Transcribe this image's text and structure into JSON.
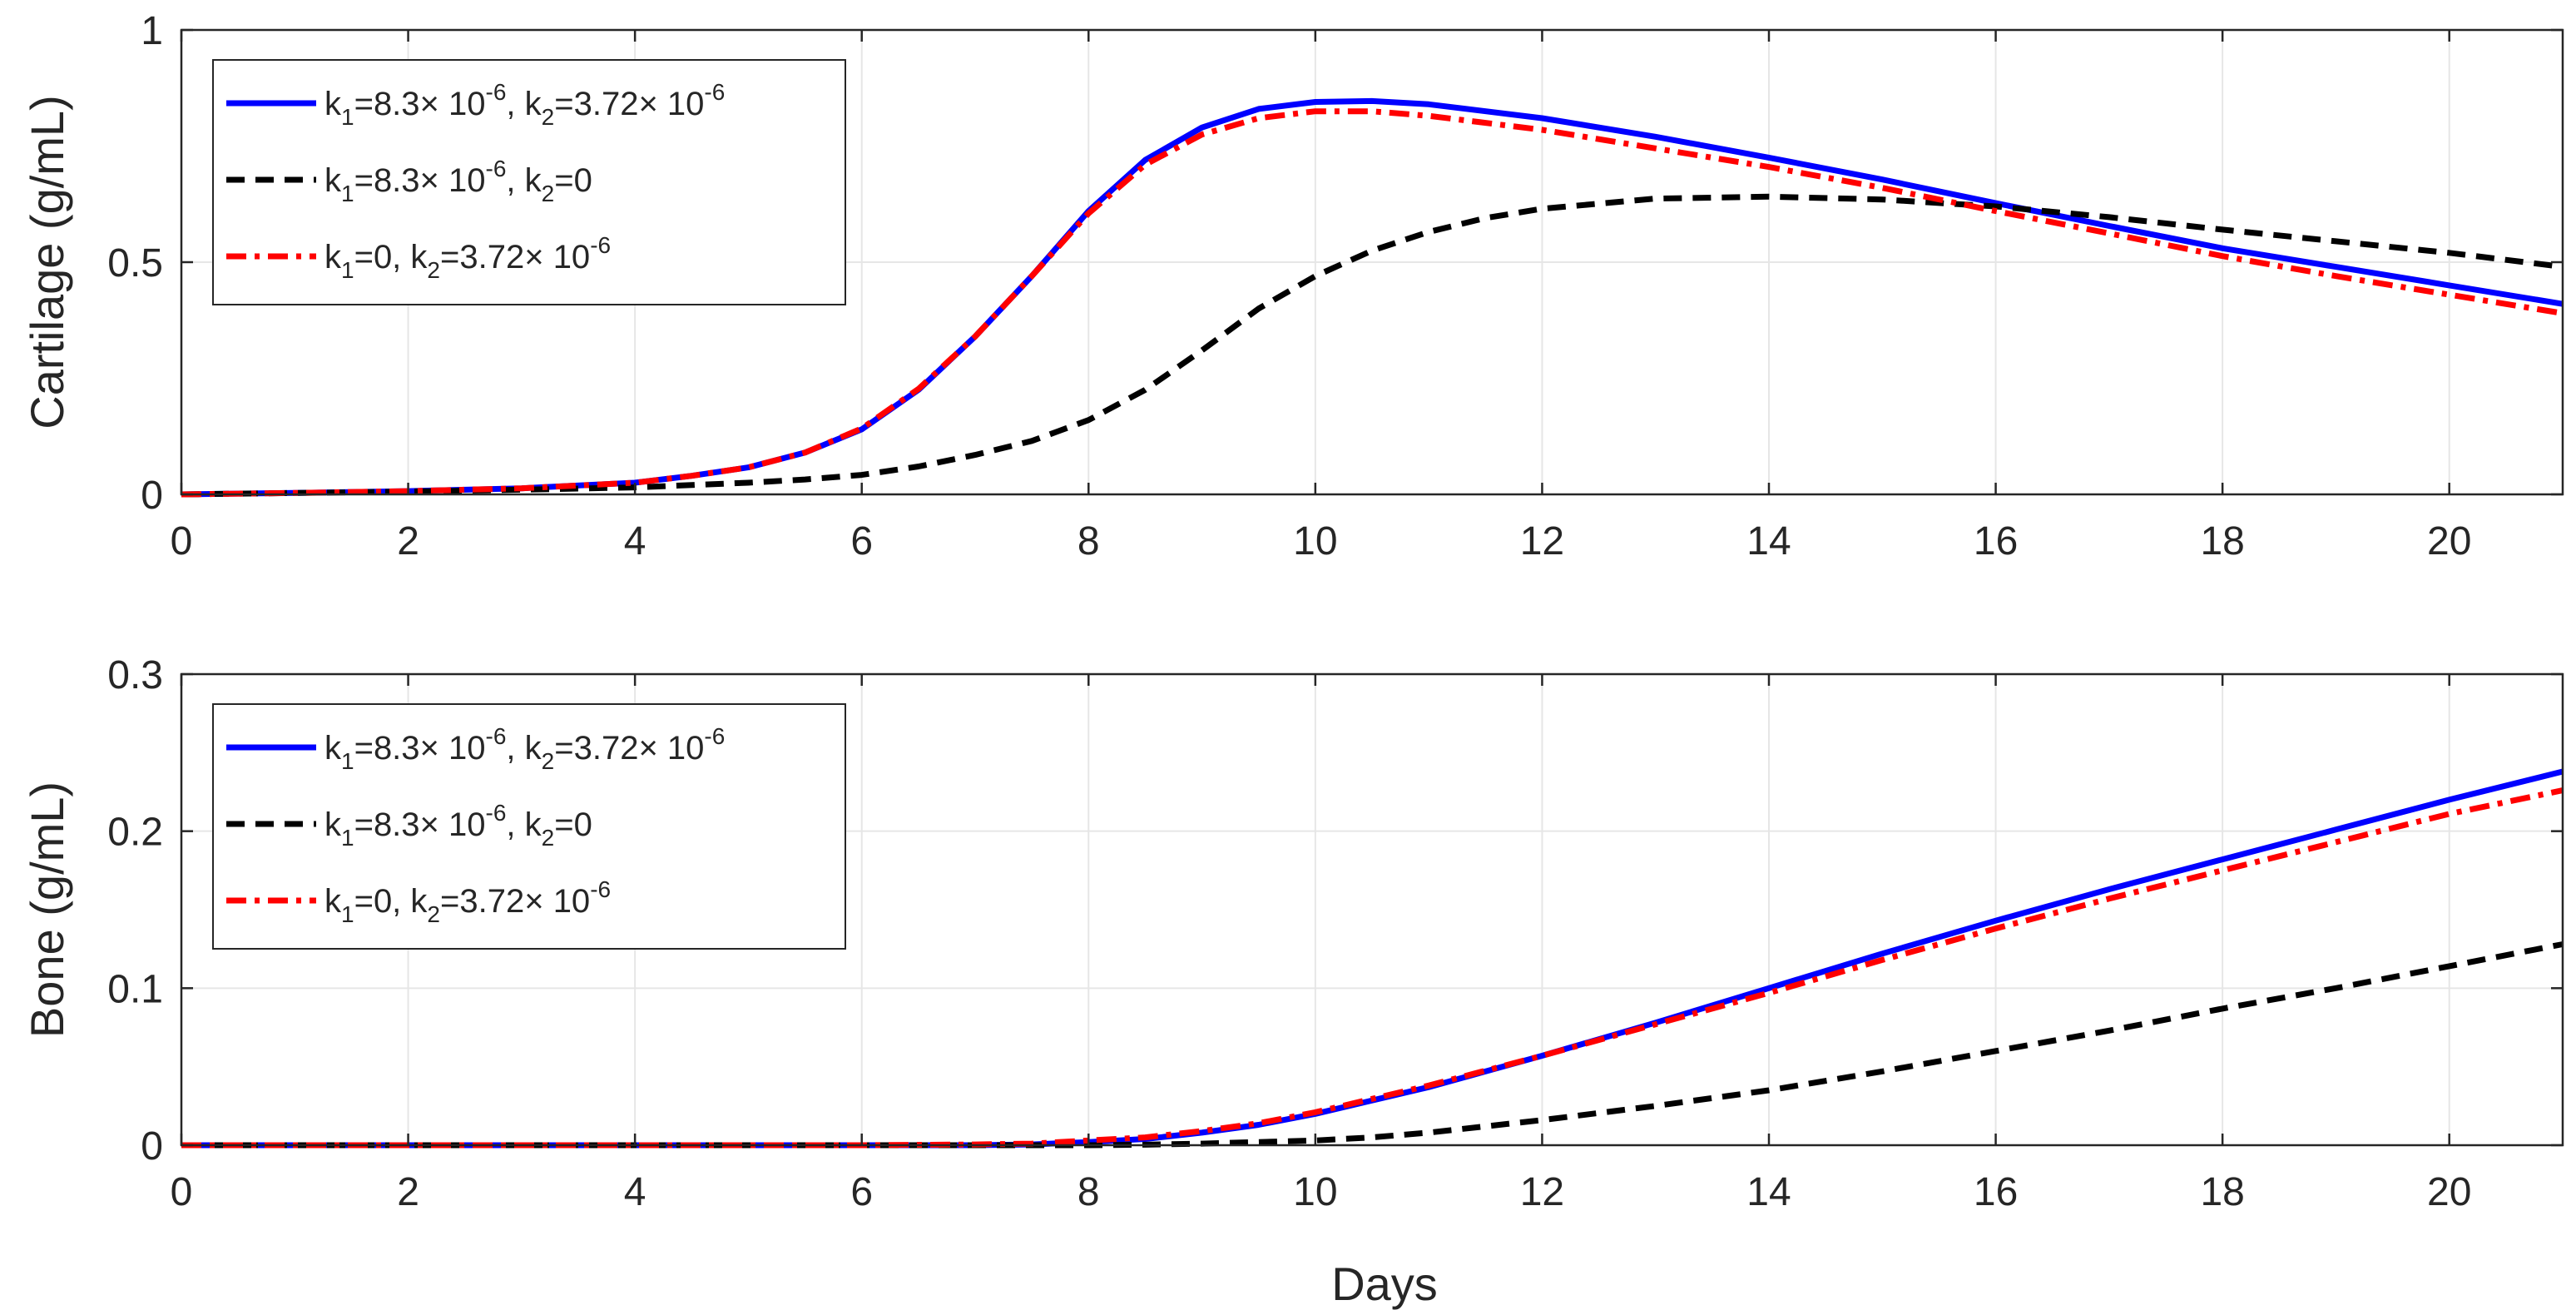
{
  "figure": {
    "xlabel": "Days",
    "legend_placement": "top-left"
  },
  "chart_data": [
    {
      "type": "line",
      "ylabel": "Cartilage (g/mL)",
      "xlim": [
        0,
        21
      ],
      "ylim": [
        0,
        1
      ],
      "x_ticks": [
        0,
        2,
        4,
        6,
        8,
        10,
        12,
        14,
        16,
        18,
        20
      ],
      "y_ticks": [
        0,
        0.5,
        1
      ],
      "y_tick_labels": [
        "0",
        "0.5",
        "1"
      ],
      "grid": true,
      "legend": "top-left",
      "series": [
        {
          "name": "k1=8.3× 10-6, k2=3.72× 10-6",
          "color": "#0000ff",
          "style": "solid",
          "x": [
            0,
            1,
            2,
            3,
            4,
            4.5,
            5,
            5.5,
            6,
            6.5,
            7,
            7.5,
            8,
            8.5,
            9,
            9.5,
            10,
            10.5,
            11,
            12,
            13,
            14,
            15,
            16,
            17,
            18,
            19,
            20,
            21
          ],
          "y": [
            0,
            0.003,
            0.007,
            0.013,
            0.025,
            0.04,
            0.058,
            0.09,
            0.14,
            0.225,
            0.34,
            0.47,
            0.61,
            0.72,
            0.79,
            0.83,
            0.845,
            0.847,
            0.84,
            0.81,
            0.77,
            0.725,
            0.678,
            0.627,
            0.578,
            0.53,
            0.49,
            0.45,
            0.41
          ]
        },
        {
          "name": "k1=8.3× 10-6, k2=0",
          "color": "#000000",
          "style": "dashed",
          "x": [
            0,
            1,
            2,
            3,
            4,
            5,
            5.5,
            6,
            6.5,
            7,
            7.5,
            8,
            8.5,
            9,
            9.5,
            10,
            10.5,
            11,
            11.5,
            12,
            13,
            14,
            15,
            16,
            17,
            18,
            19,
            20,
            21
          ],
          "y": [
            0,
            0.003,
            0.006,
            0.01,
            0.015,
            0.025,
            0.032,
            0.042,
            0.06,
            0.085,
            0.115,
            0.16,
            0.225,
            0.31,
            0.4,
            0.47,
            0.525,
            0.565,
            0.595,
            0.615,
            0.637,
            0.641,
            0.635,
            0.62,
            0.597,
            0.57,
            0.545,
            0.52,
            0.49
          ]
        },
        {
          "name": "k1=0, k2=3.72× 10-6",
          "color": "#ff0000",
          "style": "dashdot",
          "x": [
            0,
            1,
            2,
            3,
            4,
            4.5,
            5,
            5.5,
            6,
            6.5,
            7,
            7.5,
            8,
            8.5,
            9,
            9.5,
            10,
            10.5,
            11,
            12,
            13,
            14,
            15,
            16,
            17,
            18,
            19,
            20,
            21
          ],
          "y": [
            0,
            0.003,
            0.007,
            0.013,
            0.025,
            0.04,
            0.058,
            0.09,
            0.142,
            0.227,
            0.34,
            0.47,
            0.605,
            0.71,
            0.775,
            0.81,
            0.825,
            0.825,
            0.815,
            0.785,
            0.745,
            0.705,
            0.66,
            0.61,
            0.562,
            0.513,
            0.47,
            0.43,
            0.39
          ]
        }
      ]
    },
    {
      "type": "line",
      "ylabel": "Bone (g/mL)",
      "xlim": [
        0,
        21
      ],
      "ylim": [
        0,
        0.3
      ],
      "x_ticks": [
        0,
        2,
        4,
        6,
        8,
        10,
        12,
        14,
        16,
        18,
        20
      ],
      "y_ticks": [
        0,
        0.1,
        0.2,
        0.3
      ],
      "y_tick_labels": [
        "0",
        "0.1",
        "0.2",
        "0.3"
      ],
      "grid": true,
      "legend": "top-left",
      "series": [
        {
          "name": "k1=8.3× 10-6, k2=3.72× 10-6",
          "color": "#0000ff",
          "style": "solid",
          "x": [
            0,
            2,
            4,
            6,
            7,
            7.5,
            8,
            8.5,
            9,
            9.5,
            10,
            11,
            12,
            13,
            14,
            15,
            16,
            17,
            18,
            19,
            20,
            21
          ],
          "y": [
            0,
            0,
            0,
            0,
            0,
            0.0005,
            0.002,
            0.004,
            0.008,
            0.013,
            0.02,
            0.037,
            0.057,
            0.078,
            0.1,
            0.122,
            0.143,
            0.163,
            0.182,
            0.201,
            0.22,
            0.238
          ]
        },
        {
          "name": "k1=8.3× 10-6, k2=0",
          "color": "#000000",
          "style": "dashed",
          "x": [
            0,
            2,
            4,
            6,
            8,
            8.5,
            9,
            9.5,
            10,
            10.5,
            11,
            12,
            13,
            14,
            15,
            16,
            17,
            18,
            19,
            20,
            21
          ],
          "y": [
            0,
            0,
            0,
            0,
            0,
            0.0003,
            0.001,
            0.002,
            0.003,
            0.005,
            0.008,
            0.016,
            0.025,
            0.035,
            0.047,
            0.06,
            0.073,
            0.087,
            0.1,
            0.114,
            0.128
          ]
        },
        {
          "name": "k1=0, k2=3.72× 10-6",
          "color": "#ff0000",
          "style": "dashdot",
          "x": [
            0,
            2,
            4,
            6,
            7,
            7.5,
            8,
            8.5,
            9,
            9.5,
            10,
            11,
            12,
            13,
            14,
            15,
            16,
            17,
            18,
            19,
            20,
            21
          ],
          "y": [
            0,
            0,
            0,
            0,
            0.0005,
            0.001,
            0.003,
            0.005,
            0.009,
            0.014,
            0.021,
            0.038,
            0.057,
            0.077,
            0.097,
            0.118,
            0.138,
            0.157,
            0.175,
            0.193,
            0.211,
            0.226
          ]
        }
      ]
    }
  ]
}
